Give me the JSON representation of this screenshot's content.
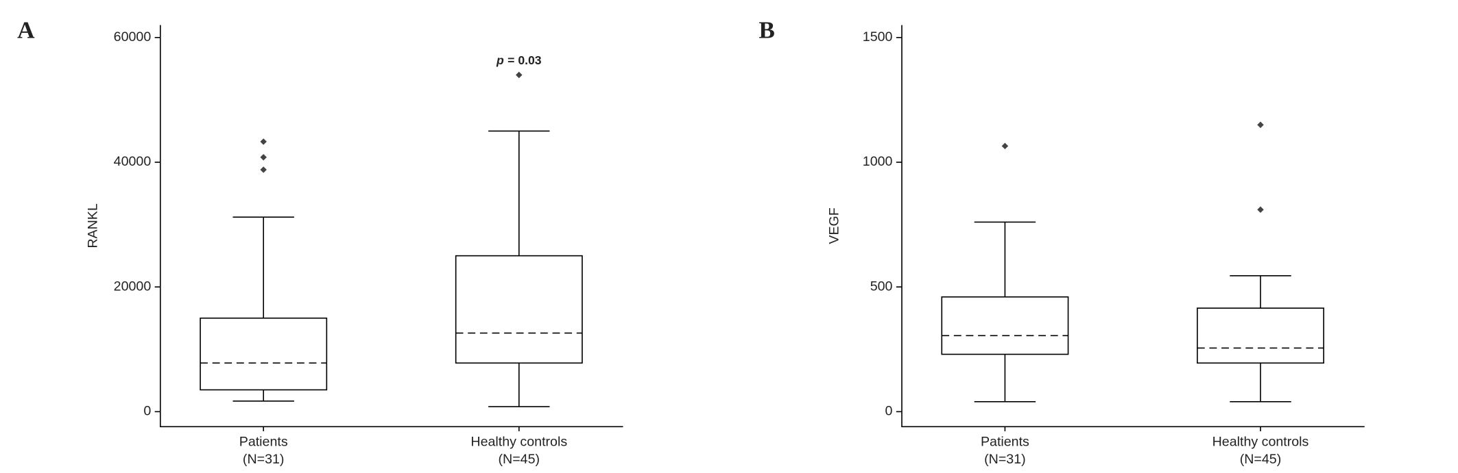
{
  "chart_data": [
    {
      "type": "box",
      "panel_label": "A",
      "y_label": "RANKL",
      "categories": [
        "Patients",
        "Healthy controls"
      ],
      "category_counts": [
        "(N=31)",
        "(N=45)"
      ],
      "boxes": [
        {
          "low": 1700,
          "q1": 3500,
          "median": 7800,
          "q3": 15000,
          "high": 31200,
          "outliers": [
            38800,
            40800,
            43300
          ]
        },
        {
          "low": 800,
          "q1": 7800,
          "median": 12600,
          "q3": 25000,
          "high": 45000,
          "outliers": [
            54000
          ]
        }
      ],
      "annotation_prefix": "p",
      "annotation": "= 0.03",
      "ylim": [
        -2400,
        62000
      ],
      "yticks": [
        0,
        20000,
        40000,
        60000
      ]
    },
    {
      "type": "box",
      "panel_label": "B",
      "y_label": "VEGF",
      "categories": [
        "Patients",
        "Healthy controls"
      ],
      "category_counts": [
        "(N=31)",
        "(N=45)"
      ],
      "boxes": [
        {
          "low": 40,
          "q1": 230,
          "median": 305,
          "q3": 460,
          "high": 760,
          "outliers": [
            1065
          ]
        },
        {
          "low": 40,
          "q1": 195,
          "median": 255,
          "q3": 415,
          "high": 545,
          "outliers": [
            810,
            1150
          ]
        }
      ],
      "ylim": [
        -60,
        1550
      ],
      "yticks": [
        0,
        500,
        1000,
        1500
      ]
    }
  ]
}
